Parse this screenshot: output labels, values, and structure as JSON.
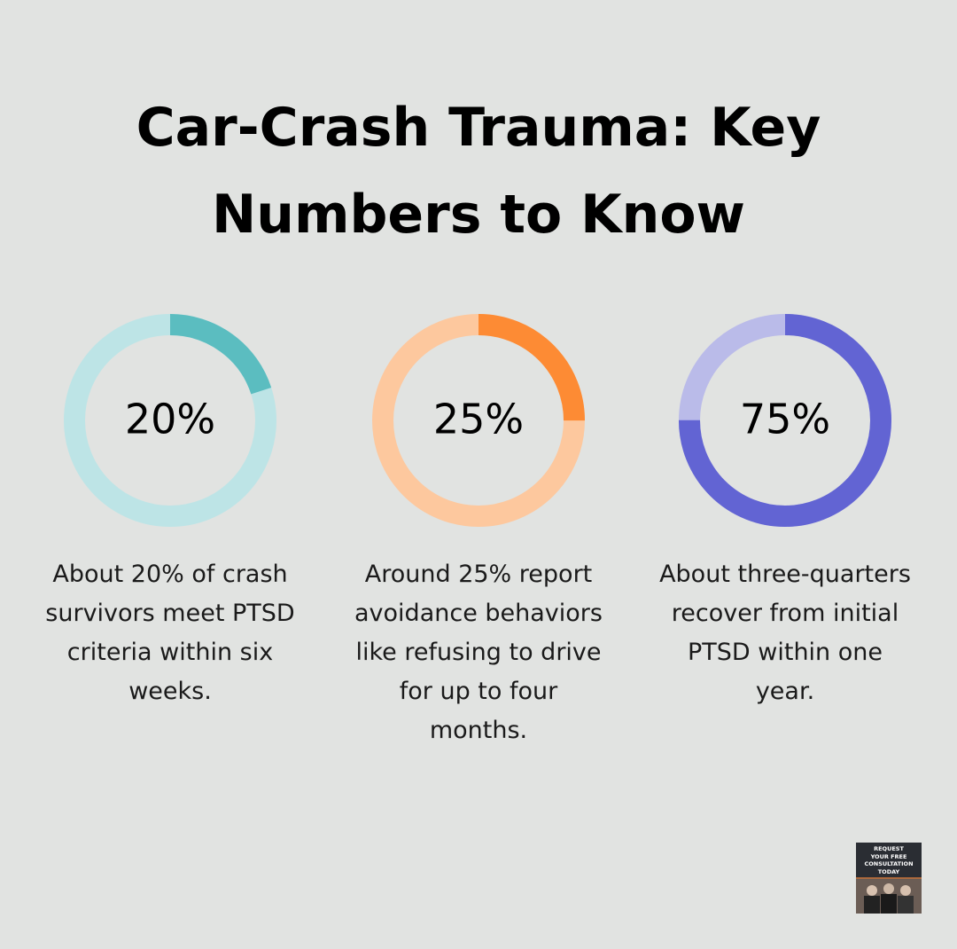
{
  "title_lines": [
    "Car-Crash Trauma: Key",
    "Numbers to Know"
  ],
  "chart_data": [
    {
      "type": "donut",
      "values": [
        20
      ],
      "value_labels": [
        "20%"
      ],
      "color": "#5bbdc0",
      "track_color": "#bde4e6",
      "caption": [
        "About 20% of crash",
        "survivors meet PTSD",
        "criteria within six",
        "weeks."
      ]
    },
    {
      "type": "donut",
      "values": [
        25
      ],
      "value_labels": [
        "25%"
      ],
      "color": "#fd8b34",
      "track_color": "#fdc89e",
      "caption": [
        "Around 25% report",
        "avoidance behaviors",
        "like refusing to drive",
        "for up to four",
        "months."
      ]
    },
    {
      "type": "donut",
      "values": [
        75
      ],
      "value_labels": [
        "75%"
      ],
      "color": "#6264d3",
      "track_color": "#babbe9",
      "caption": [
        "About three-quarters",
        "recover from initial",
        "PTSD within one",
        "year."
      ]
    }
  ],
  "cta": {
    "lines": [
      "REQUEST",
      "YOUR FREE",
      "CONSULTATION",
      "TODAY"
    ]
  }
}
